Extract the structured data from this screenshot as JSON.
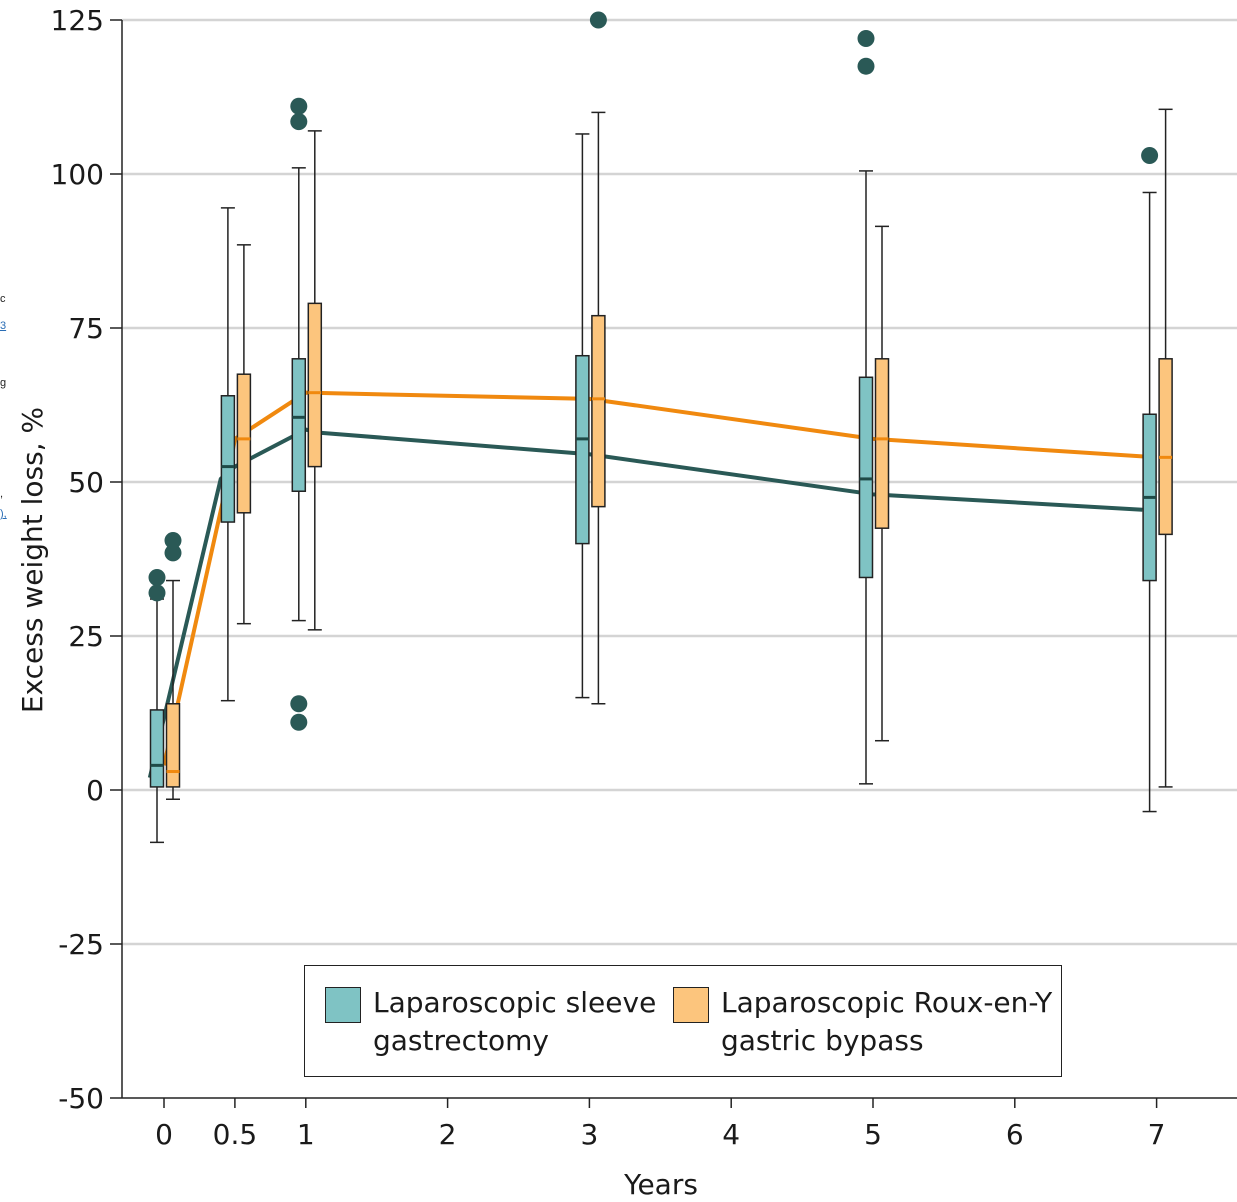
{
  "edge_fragments": [
    "c",
    "3",
    "g",
    ",",
    "),"
  ],
  "chart_data": {
    "type": "box",
    "xlabel": "Years",
    "ylabel": "Excess weight loss, %",
    "xlim": [
      -0.3,
      7.6
    ],
    "ylim": [
      -50,
      125
    ],
    "xticks": [
      0,
      0.5,
      1,
      2,
      3,
      4,
      5,
      6,
      7
    ],
    "xtick_labels": [
      "0",
      "0.5",
      "1",
      "2",
      "3",
      "4",
      "5",
      "6",
      "7"
    ],
    "yticks": [
      -50,
      -25,
      0,
      25,
      50,
      75,
      100,
      125
    ],
    "ytick_labels": [
      "-50",
      "-25",
      "0",
      "25",
      "50",
      "75",
      "100",
      "125"
    ],
    "grid": "horizontal",
    "legend_position": "bottom-center",
    "series": [
      {
        "name": "Laparoscopic sleeve\ngastrectomy",
        "color": "#7fc3c4",
        "line_color": "#2a5956",
        "boxes": [
          {
            "x": 0,
            "q1": 0.5,
            "median": 4,
            "q3": 13,
            "whisker_low": -8.5,
            "whisker_high": 31,
            "outliers": [
              32,
              34.5
            ]
          },
          {
            "x": 0.5,
            "q1": 43.5,
            "median": 52.5,
            "q3": 64,
            "whisker_low": 14.5,
            "whisker_high": 94.5,
            "outliers": []
          },
          {
            "x": 1,
            "q1": 48.5,
            "median": 60.5,
            "q3": 70,
            "whisker_low": 27.5,
            "whisker_high": 101,
            "outliers": [
              108.5,
              111,
              14,
              11
            ]
          },
          {
            "x": 3,
            "q1": 40,
            "median": 57,
            "q3": 70.5,
            "whisker_low": 15,
            "whisker_high": 106.5,
            "outliers": []
          },
          {
            "x": 5,
            "q1": 34.5,
            "median": 50.5,
            "q3": 67,
            "whisker_low": 1,
            "whisker_high": 100.5,
            "outliers": [
              117.5,
              122
            ]
          },
          {
            "x": 7,
            "q1": 34,
            "median": 47.5,
            "q3": 61,
            "whisker_low": -3.5,
            "whisker_high": 97,
            "outliers": [
              103
            ]
          }
        ],
        "mean_line": [
          [
            -0.1,
            2
          ],
          [
            0.4,
            50.5
          ],
          [
            0.5,
            52.5
          ],
          [
            1,
            58.5
          ],
          [
            1.1,
            58
          ],
          [
            3,
            54.5
          ],
          [
            5,
            48
          ],
          [
            6.9,
            45.5
          ]
        ]
      },
      {
        "name": "Laparoscopic Roux-en-Y\ngastric bypass",
        "color": "#fcc57d",
        "line_color": "#f0890f",
        "boxes": [
          {
            "x": 0,
            "q1": 0.5,
            "median": 3,
            "q3": 14,
            "whisker_low": -1.5,
            "whisker_high": 34,
            "outliers": [
              38.5,
              40.5
            ]
          },
          {
            "x": 0.5,
            "q1": 45,
            "median": 57,
            "q3": 67.5,
            "whisker_low": 27,
            "whisker_high": 88.5,
            "outliers": []
          },
          {
            "x": 1,
            "q1": 52.5,
            "median": 64.5,
            "q3": 79,
            "whisker_low": 26,
            "whisker_high": 107,
            "outliers": []
          },
          {
            "x": 3,
            "q1": 46,
            "median": 63.5,
            "q3": 77,
            "whisker_low": 14,
            "whisker_high": 110,
            "outliers": [
              125
            ]
          },
          {
            "x": 5,
            "q1": 42.5,
            "median": 57,
            "q3": 70,
            "whisker_low": 8,
            "whisker_high": 91.5,
            "outliers": []
          },
          {
            "x": 7,
            "q1": 41.5,
            "median": 54,
            "q3": 70,
            "whisker_low": 0.5,
            "whisker_high": 110.5,
            "outliers": []
          }
        ],
        "mean_line": [
          [
            0,
            4
          ],
          [
            0.45,
            50.5
          ],
          [
            0.5,
            57
          ],
          [
            1,
            64.5
          ],
          [
            3,
            63.5
          ],
          [
            5,
            57
          ],
          [
            7,
            54
          ]
        ]
      }
    ]
  }
}
